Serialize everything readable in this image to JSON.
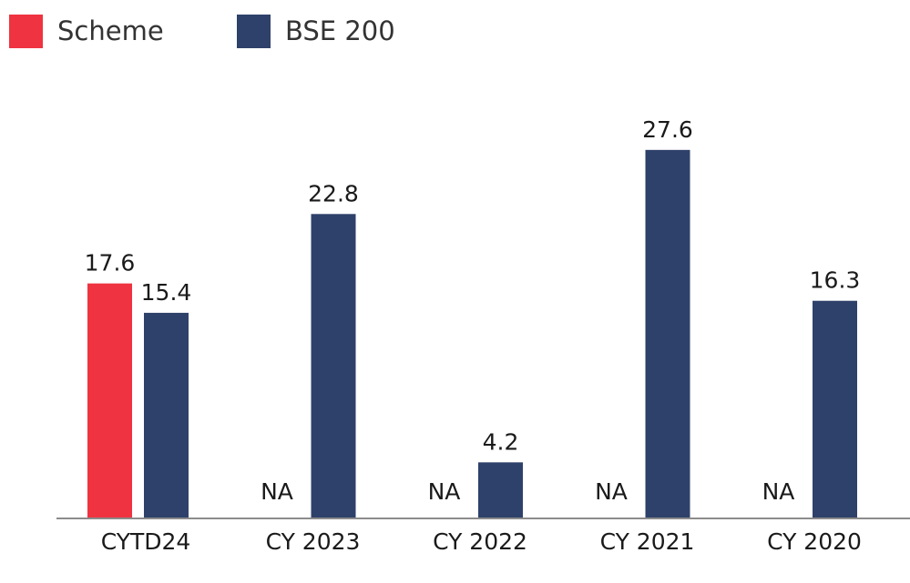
{
  "colors": {
    "scheme": "#ef3340",
    "benchmark": "#2e416a",
    "axis": "#8c8c8c",
    "text": "#1a1a1a"
  },
  "legend": {
    "position": "top-left",
    "items": [
      {
        "label": "Scheme",
        "color": "#ef3340"
      },
      {
        "label": "BSE 200",
        "color": "#2e416a"
      }
    ]
  },
  "chart_data": {
    "type": "bar",
    "title": "",
    "xlabel": "",
    "ylabel": "",
    "ylim": [
      0,
      30
    ],
    "grid": false,
    "categories": [
      "CYTD24",
      "CY 2023",
      "CY 2022",
      "CY 2021",
      "CY 2020"
    ],
    "series": [
      {
        "name": "Scheme",
        "color": "#ef3340",
        "values": [
          17.6,
          null,
          null,
          null,
          null
        ],
        "labels": [
          "17.6",
          "NA",
          "NA",
          "NA",
          "NA"
        ]
      },
      {
        "name": "BSE 200",
        "color": "#2e416a",
        "values": [
          15.4,
          22.8,
          4.2,
          27.6,
          16.3
        ],
        "labels": [
          "15.4",
          "22.8",
          "4.2",
          "27.6",
          "16.3"
        ]
      }
    ]
  }
}
